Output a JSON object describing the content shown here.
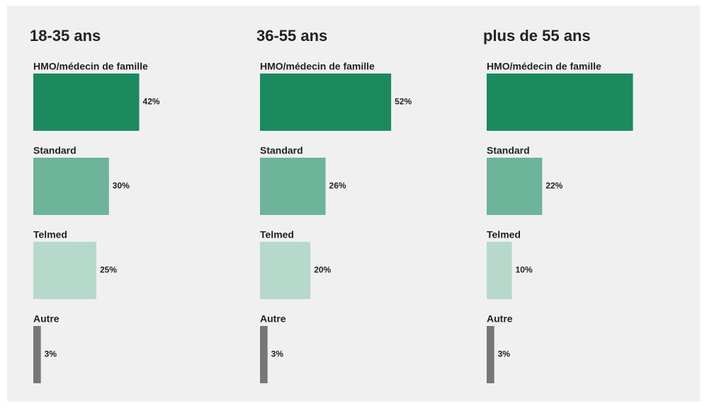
{
  "chart_data": [
    {
      "type": "bar",
      "title": "18-35 ans",
      "categories": [
        "HMO/médecin de famille",
        "Standard",
        "Telmed",
        "Autre"
      ],
      "values": [
        42,
        30,
        25,
        3
      ],
      "value_labels": [
        "42%",
        "30%",
        "25%",
        "3%"
      ],
      "colors": [
        "#1b8a5f",
        "#6db49a",
        "#b6d9cb",
        "#777777"
      ]
    },
    {
      "type": "bar",
      "title": "36-55 ans",
      "categories": [
        "HMO/médecin de famille",
        "Standard",
        "Telmed",
        "Autre"
      ],
      "values": [
        52,
        26,
        20,
        3
      ],
      "value_labels": [
        "52%",
        "26%",
        "20%",
        "3%"
      ],
      "colors": [
        "#1b8a5f",
        "#6db49a",
        "#b6d9cb",
        "#777777"
      ]
    },
    {
      "type": "bar",
      "title": "plus de 55 ans",
      "categories": [
        "HMO/médecin de famille",
        "Standard",
        "Telmed",
        "Autre"
      ],
      "values": [
        58,
        22,
        10,
        3
      ],
      "value_labels": [
        null,
        "22%",
        "10%",
        "3%"
      ],
      "colors": [
        "#1b8a5f",
        "#6db49a",
        "#b6d9cb",
        "#777777"
      ]
    }
  ]
}
